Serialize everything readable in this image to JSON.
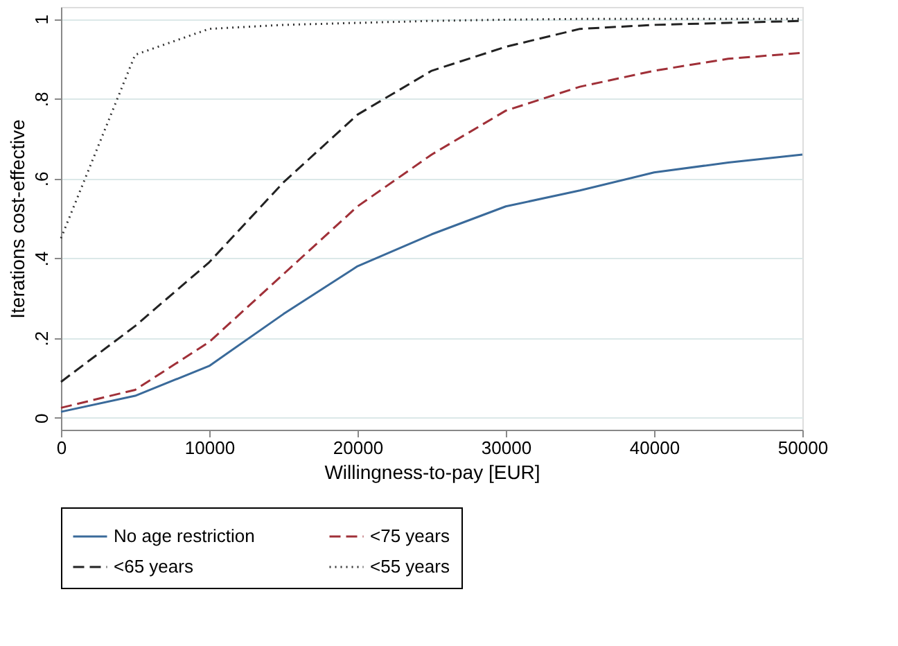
{
  "chart_data": {
    "type": "line",
    "xlabel": "Willingness-to-pay [EUR]",
    "ylabel": "Iterations cost-effective",
    "x": [
      0,
      5000,
      10000,
      15000,
      20000,
      25000,
      30000,
      35000,
      40000,
      45000,
      50000
    ],
    "series": [
      {
        "name": "No age restriction",
        "color": "#3a6a9a",
        "line_style": "solid",
        "values": [
          0.015,
          0.055,
          0.13,
          0.26,
          0.38,
          0.46,
          0.53,
          0.57,
          0.615,
          0.64,
          0.66
        ]
      },
      {
        "name": "<75 years",
        "color": "#a03038",
        "line_style": "dashed",
        "values": [
          0.025,
          0.07,
          0.19,
          0.36,
          0.53,
          0.66,
          0.77,
          0.83,
          0.87,
          0.9,
          0.915
        ]
      },
      {
        "name": "<65 years",
        "color": "#222222",
        "line_style": "dashed",
        "values": [
          0.09,
          0.23,
          0.39,
          0.59,
          0.76,
          0.87,
          0.93,
          0.975,
          0.985,
          0.99,
          0.995
        ]
      },
      {
        "name": "<55 years",
        "color": "#333333",
        "line_style": "dotted",
        "values": [
          0.45,
          0.91,
          0.975,
          0.985,
          0.99,
          0.995,
          0.998,
          1,
          1,
          1,
          1
        ]
      }
    ],
    "xlim": [
      0,
      50000
    ],
    "xticks": [
      0,
      10000,
      20000,
      30000,
      40000,
      50000
    ],
    "ylim": [
      -0.03,
      1.03
    ],
    "yticks": [
      {
        "value": 0,
        "label": "0"
      },
      {
        "value": 0.2,
        "label": ".2"
      },
      {
        "value": 0.4,
        "label": ".4"
      },
      {
        "value": 0.6,
        "label": ".6"
      },
      {
        "value": 0.8,
        "label": ".8"
      },
      {
        "value": 1,
        "label": "1"
      }
    ],
    "grid": "y",
    "legend": "bottom",
    "marker": "none"
  }
}
